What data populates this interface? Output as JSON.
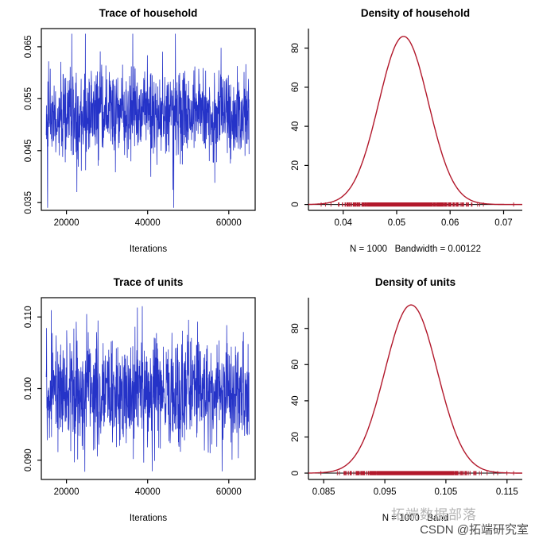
{
  "watermark": {
    "overlay_text": "拓端数据部落",
    "credit_text": "CSDN @拓端研究室"
  },
  "colors": {
    "trace": "#2533c8",
    "density": "#b2182b",
    "axis": "#000000",
    "watermark_gray": "#b5b5b5",
    "credit_gray": "#4a4a4a"
  },
  "chart_data": [
    {
      "id": "trace-household",
      "type": "line",
      "title": "Trace of household",
      "xlabel": "Iterations",
      "color": "#2533c8",
      "xlim": [
        13800,
        66500
      ],
      "ylim": [
        0.0335,
        0.0685
      ],
      "xticks": [
        20000,
        40000,
        60000
      ],
      "xtick_labels": [
        "20000",
        "40000",
        "60000"
      ],
      "yticks": [
        0.035,
        0.045,
        0.055,
        0.065
      ],
      "ytick_labels": [
        "0.035",
        "0.045",
        "0.055",
        "0.065"
      ],
      "grid": false,
      "series": {
        "kind": "mcmc-trace",
        "n": 1000,
        "x_start": 15000,
        "x_end": 65000,
        "mean": 0.052,
        "sd": 0.0042,
        "min": 0.034,
        "max": 0.0675,
        "seed": 42
      }
    },
    {
      "id": "density-household",
      "type": "area",
      "title": "Density of household",
      "caption": "N = 1000   Bandwidth = 0.00122",
      "color": "#b2182b",
      "xlim": [
        0.0335,
        0.0735
      ],
      "ylim": [
        -3,
        90
      ],
      "xticks": [
        0.04,
        0.05,
        0.06,
        0.07
      ],
      "xtick_labels": [
        "0.04",
        "0.05",
        "0.06",
        "0.07"
      ],
      "yticks": [
        0,
        20,
        40,
        60,
        80
      ],
      "ytick_labels": [
        "0",
        "20",
        "40",
        "60",
        "80"
      ],
      "grid": false,
      "density": {
        "mean": 0.0513,
        "sd": 0.00464,
        "peak": 86,
        "n": 1000,
        "rug_n": 1000,
        "seed": 7
      }
    },
    {
      "id": "trace-units",
      "type": "line",
      "title": "Trace of units",
      "xlabel": "Iterations",
      "color": "#2533c8",
      "xlim": [
        13800,
        66500
      ],
      "ylim": [
        0.0873,
        0.1127
      ],
      "xticks": [
        20000,
        40000,
        60000
      ],
      "xtick_labels": [
        "20000",
        "40000",
        "60000"
      ],
      "yticks": [
        0.09,
        0.1,
        0.11
      ],
      "ytick_labels": [
        "0.090",
        "0.100",
        "0.110"
      ],
      "grid": false,
      "series": {
        "kind": "mcmc-trace",
        "n": 1000,
        "x_start": 15000,
        "x_end": 65000,
        "mean": 0.0995,
        "sd": 0.0038,
        "min": 0.0872,
        "max": 0.1115,
        "seed": 99
      }
    },
    {
      "id": "density-units",
      "type": "area",
      "title": "Density of units",
      "caption": "N = 1000   Band",
      "color": "#b2182b",
      "xlim": [
        0.0825,
        0.1175
      ],
      "ylim": [
        -3.5,
        97
      ],
      "xticks": [
        0.085,
        0.095,
        0.105,
        0.115
      ],
      "xtick_labels": [
        "0.085",
        "0.095",
        "0.105",
        "0.115"
      ],
      "yticks": [
        0,
        20,
        40,
        60,
        80
      ],
      "ytick_labels": [
        "0",
        "20",
        "40",
        "60",
        "80"
      ],
      "grid": false,
      "density": {
        "mean": 0.0993,
        "sd": 0.0043,
        "peak": 93,
        "n": 1000,
        "rug_n": 1000,
        "seed": 21
      }
    }
  ]
}
